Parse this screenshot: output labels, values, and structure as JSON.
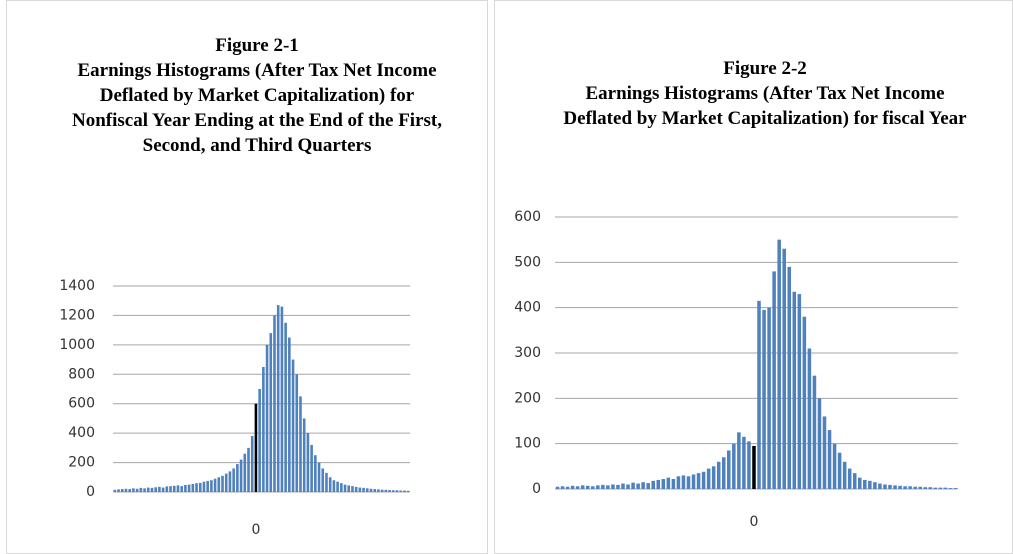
{
  "chart_data": [
    {
      "type": "bar",
      "figure_label": "Figure 2-1",
      "title": "Earnings Histograms (After Tax Net Income Deflated by Market Capitalization) for Nonfiscal Year Ending at the End of the First, Second, and Third Quarters",
      "color": "#4f81bd",
      "highlight": {
        "index": 38,
        "color": "#000000"
      },
      "grid": true,
      "ylim": [
        0,
        1400
      ],
      "yticks": [
        0,
        200,
        400,
        600,
        800,
        1000,
        1200,
        1400
      ],
      "categories": [
        null,
        null,
        null,
        null,
        null,
        null,
        null,
        null,
        null,
        null,
        null,
        null,
        null,
        null,
        null,
        null,
        null,
        null,
        null,
        null,
        null,
        null,
        null,
        null,
        null,
        null,
        null,
        null,
        null,
        null,
        null,
        null,
        null,
        null,
        null,
        null,
        null,
        null,
        "0",
        null,
        null,
        null,
        null,
        null,
        null,
        null,
        null,
        null,
        null,
        null,
        null,
        null,
        null,
        null,
        null,
        null,
        null,
        null,
        null,
        null,
        null,
        null,
        null,
        null,
        null,
        null,
        null,
        null,
        null,
        null,
        null,
        null,
        null,
        null,
        null,
        null,
        null,
        null,
        null,
        null
      ],
      "values": [
        15,
        18,
        20,
        22,
        20,
        25,
        22,
        28,
        25,
        30,
        28,
        32,
        35,
        30,
        38,
        40,
        42,
        45,
        40,
        48,
        50,
        55,
        60,
        62,
        70,
        75,
        80,
        90,
        100,
        110,
        125,
        140,
        160,
        190,
        220,
        260,
        300,
        380,
        600,
        700,
        850,
        1000,
        1080,
        1200,
        1270,
        1260,
        1150,
        1050,
        900,
        800,
        650,
        500,
        400,
        320,
        250,
        200,
        160,
        130,
        100,
        80,
        70,
        60,
        50,
        45,
        40,
        35,
        30,
        28,
        25,
        22,
        20,
        18,
        16,
        15,
        14,
        12,
        12,
        10,
        10,
        8
      ]
    },
    {
      "type": "bar",
      "figure_label": "Figure 2-2",
      "title": "Earnings Histograms (After Tax Net Income Deflated by Market Capitalization) for fiscal Year",
      "color": "#4f81bd",
      "highlight": {
        "index": 39,
        "color": "#000000"
      },
      "grid": true,
      "ylim": [
        0,
        600
      ],
      "yticks": [
        0,
        100,
        200,
        300,
        400,
        500,
        600
      ],
      "categories": [
        null,
        null,
        null,
        null,
        null,
        null,
        null,
        null,
        null,
        null,
        null,
        null,
        null,
        null,
        null,
        null,
        null,
        null,
        null,
        null,
        null,
        null,
        null,
        null,
        null,
        null,
        null,
        null,
        null,
        null,
        null,
        null,
        null,
        null,
        null,
        null,
        null,
        null,
        null,
        "0",
        null,
        null,
        null,
        null,
        null,
        null,
        null,
        null,
        null,
        null,
        null,
        null,
        null,
        null,
        null,
        null,
        null,
        null,
        null,
        null,
        null,
        null,
        null,
        null,
        null,
        null,
        null,
        null,
        null,
        null,
        null,
        null,
        null,
        null,
        null,
        null,
        null,
        null,
        null,
        null
      ],
      "values": [
        5,
        6,
        5,
        7,
        6,
        8,
        7,
        6,
        8,
        9,
        8,
        10,
        9,
        12,
        10,
        14,
        12,
        15,
        13,
        18,
        20,
        22,
        25,
        22,
        28,
        30,
        28,
        32,
        35,
        38,
        45,
        50,
        60,
        70,
        85,
        100,
        125,
        115,
        105,
        95,
        415,
        395,
        400,
        480,
        550,
        530,
        490,
        435,
        430,
        380,
        310,
        250,
        200,
        160,
        130,
        100,
        80,
        60,
        45,
        35,
        25,
        20,
        18,
        15,
        12,
        10,
        9,
        8,
        7,
        6,
        6,
        5,
        5,
        4,
        4,
        3,
        3,
        3,
        2,
        2
      ]
    }
  ]
}
